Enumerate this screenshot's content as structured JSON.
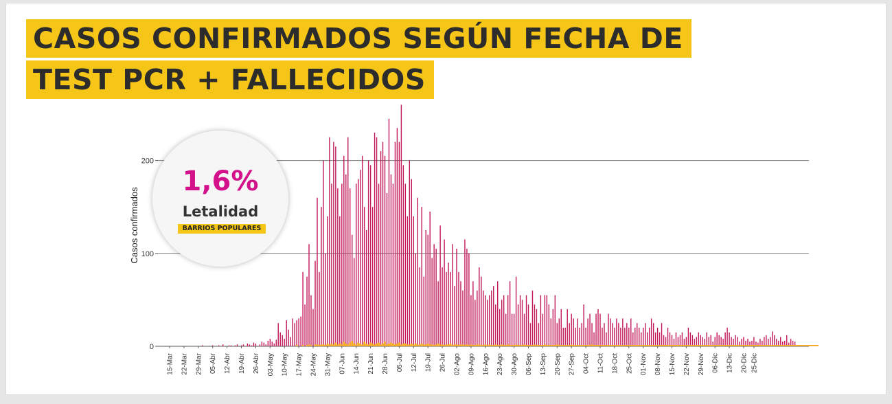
{
  "title_lines": [
    "CASOS CONFIRMADOS SEGÚN FECHA DE",
    "TEST PCR + FALLECIDOS"
  ],
  "badge": {
    "value": "1,6%",
    "label": "Letalidad",
    "tag": "BARRIOS POPULARES"
  },
  "colors": {
    "cases": "#c2185b",
    "deaths": "#f5a623",
    "highlight": "#f5c518",
    "badge_value": "#d3118a"
  },
  "chart_data": {
    "type": "bar",
    "ylabel": "Casos confirmados",
    "xlabel": "",
    "ylim": [
      0,
      260
    ],
    "yticks": [
      0,
      100,
      200
    ],
    "grid": true,
    "start_date": "2020-03-15",
    "xtick_labels": [
      "15-Mar",
      "22-Mar",
      "29-Mar",
      "05-Abr",
      "12-Abr",
      "19-Abr",
      "26-Abr",
      "03-May",
      "10-May",
      "17-May",
      "24-May",
      "31-May",
      "07-Jun",
      "14-Jun",
      "21-Jun",
      "28-Jun",
      "05-Jul",
      "12-Jul",
      "19-Jul",
      "26-Jul",
      "02-Ago",
      "09-Ago",
      "16-Ago",
      "23-Ago",
      "30-Ago",
      "06-Sep",
      "13-Sep",
      "20-Sep",
      "27-Sep",
      "04-Oct",
      "11-Oct",
      "18-Oct",
      "25-Oct",
      "01-Nov",
      "08-Nov",
      "15-Nov",
      "22-Nov",
      "29-Nov",
      "06-Dic",
      "13-Dic",
      "20-Dic",
      "25-Dic"
    ],
    "series": [
      {
        "name": "Casos confirmados",
        "values": [
          0,
          0,
          0,
          0,
          0,
          0,
          0,
          0,
          0,
          0,
          0,
          0,
          0,
          0,
          0,
          0,
          1,
          0,
          0,
          0,
          0,
          1,
          0,
          0,
          1,
          0,
          2,
          0,
          0,
          1,
          1,
          0,
          1,
          2,
          0,
          1,
          2,
          0,
          3,
          2,
          1,
          4,
          3,
          0,
          2,
          5,
          4,
          2,
          6,
          8,
          5,
          3,
          7,
          25,
          15,
          12,
          8,
          28,
          18,
          10,
          30,
          25,
          28,
          30,
          32,
          80,
          45,
          75,
          110,
          55,
          40,
          92,
          160,
          80,
          150,
          200,
          100,
          140,
          225,
          175,
          220,
          215,
          170,
          140,
          175,
          205,
          185,
          225,
          170,
          120,
          95,
          175,
          180,
          190,
          205,
          150,
          125,
          200,
          195,
          150,
          230,
          225,
          175,
          210,
          220,
          205,
          165,
          245,
          185,
          175,
          220,
          235,
          220,
          260,
          195,
          175,
          140,
          200,
          180,
          140,
          100,
          160,
          85,
          150,
          75,
          125,
          120,
          145,
          95,
          110,
          105,
          70,
          130,
          85,
          115,
          80,
          90,
          80,
          110,
          65,
          105,
          80,
          70,
          60,
          115,
          105,
          100,
          55,
          70,
          50,
          60,
          85,
          75,
          60,
          55,
          50,
          55,
          60,
          65,
          45,
          70,
          40,
          50,
          55,
          35,
          55,
          70,
          35,
          35,
          75,
          45,
          55,
          50,
          35,
          55,
          45,
          25,
          60,
          45,
          40,
          25,
          55,
          35,
          55,
          55,
          45,
          30,
          40,
          55,
          25,
          30,
          40,
          20,
          20,
          40,
          25,
          35,
          30,
          20,
          30,
          20,
          25,
          45,
          20,
          30,
          35,
          25,
          15,
          35,
          40,
          35,
          20,
          25,
          15,
          35,
          30,
          25,
          20,
          30,
          25,
          20,
          30,
          20,
          25,
          20,
          30,
          15,
          20,
          25,
          20,
          15,
          20,
          25,
          15,
          20,
          30,
          25,
          15,
          20,
          15,
          25,
          12,
          10,
          20,
          15,
          12,
          8,
          15,
          10,
          12,
          15,
          8,
          10,
          20,
          15,
          12,
          8,
          10,
          15,
          12,
          10,
          8,
          15,
          10,
          12,
          5,
          10,
          15,
          12,
          10,
          8,
          15,
          20,
          15,
          10,
          8,
          12,
          10,
          5,
          8,
          10,
          6,
          8,
          5,
          6,
          10,
          5,
          4,
          8,
          6,
          10,
          12,
          8,
          10,
          16,
          12,
          8,
          6,
          10,
          5,
          6,
          12,
          4,
          8,
          6,
          5
        ]
      },
      {
        "name": "Fallecidos",
        "values": [
          0,
          0,
          0,
          0,
          0,
          0,
          0,
          0,
          0,
          0,
          0,
          0,
          0,
          0,
          0,
          0,
          0,
          0,
          0,
          0,
          0,
          0,
          0,
          0,
          0,
          0,
          0,
          0,
          0,
          0,
          0,
          0,
          0,
          0,
          0,
          0,
          0,
          0,
          0,
          0,
          0,
          0,
          0,
          0,
          0,
          0,
          0,
          0,
          0,
          0,
          0,
          0,
          0,
          0,
          0,
          0,
          0,
          0,
          0,
          0,
          0,
          0,
          1,
          0,
          0,
          1,
          0,
          1,
          2,
          1,
          0,
          2,
          2,
          1,
          2,
          2,
          1,
          3,
          2,
          3,
          2,
          4,
          2,
          3,
          2,
          5,
          3,
          2,
          4,
          6,
          3,
          2,
          4,
          3,
          2,
          5,
          3,
          2,
          4,
          3,
          2,
          3,
          4,
          2,
          3,
          5,
          2,
          3,
          4,
          3,
          2,
          3,
          4,
          2,
          3,
          3,
          2,
          2,
          3,
          2,
          3,
          2,
          2,
          3,
          2,
          2,
          3,
          2,
          2,
          1,
          2,
          3,
          2,
          2,
          1,
          2,
          2,
          3,
          1,
          2,
          2,
          1,
          2,
          2,
          1,
          2,
          1,
          2,
          1,
          1,
          2,
          2,
          1,
          1,
          2,
          1,
          2,
          1,
          1,
          2,
          1,
          1,
          2,
          1,
          1,
          2,
          1,
          1,
          1,
          2,
          1,
          1,
          1,
          2,
          1,
          1,
          1,
          1,
          2,
          1,
          1,
          1,
          1,
          2,
          1,
          1,
          1,
          1,
          1,
          2,
          1,
          1,
          1,
          1,
          1,
          1,
          2,
          1,
          1,
          1,
          1,
          1,
          1,
          1,
          1,
          1,
          2,
          1,
          1,
          1,
          1,
          1,
          1,
          1,
          1,
          1,
          1,
          1,
          1,
          1,
          1,
          1,
          1,
          1,
          1,
          1,
          1,
          1,
          1,
          1,
          1,
          1,
          1,
          1,
          1,
          1,
          1,
          1,
          1,
          1,
          1,
          1,
          1,
          1,
          1,
          1,
          1,
          1,
          1,
          1,
          1,
          1,
          1,
          1,
          1,
          1,
          1,
          1,
          1,
          1,
          1,
          1,
          1,
          1,
          1,
          1,
          1,
          1,
          1,
          1,
          1,
          1,
          1,
          1,
          1,
          1,
          1,
          1,
          1,
          1,
          1,
          1,
          1,
          1,
          1,
          1,
          1,
          1,
          1,
          1,
          1,
          1,
          1,
          1,
          1,
          1,
          1,
          1,
          1,
          1,
          1,
          1,
          1,
          1,
          1,
          1,
          1,
          1,
          1,
          1,
          1,
          1,
          1,
          1,
          1,
          1,
          1
        ]
      }
    ]
  }
}
